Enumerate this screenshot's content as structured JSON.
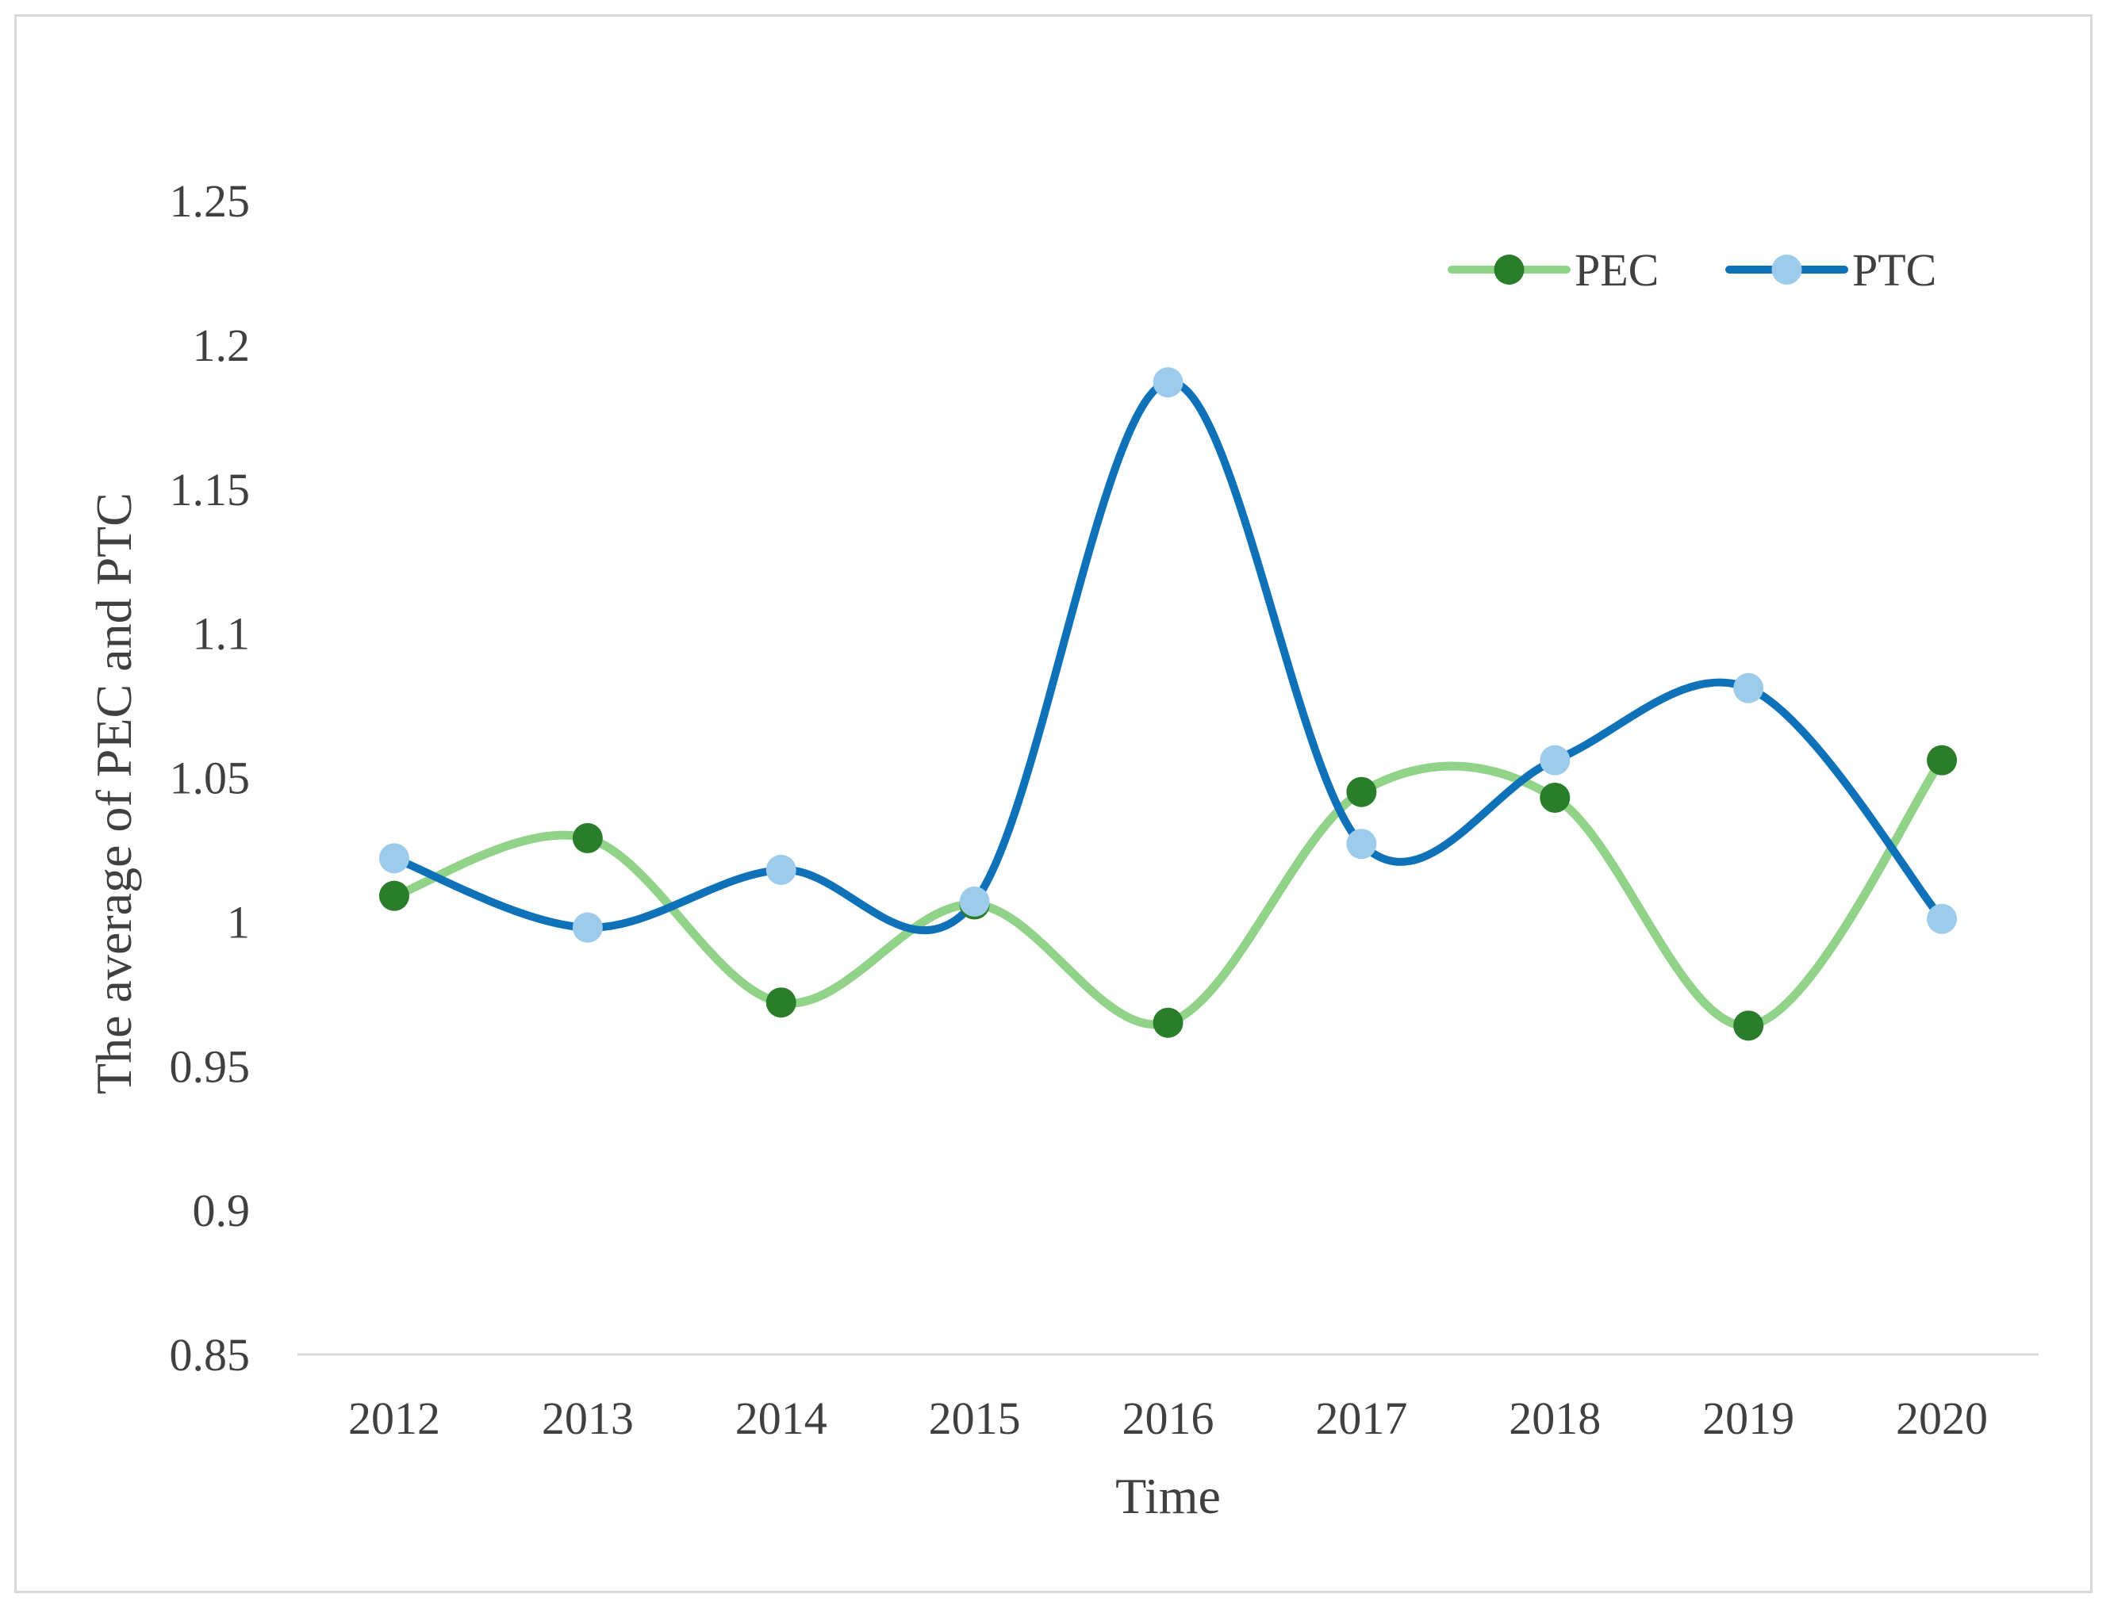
{
  "chart_data": {
    "type": "line",
    "title": "",
    "xlabel": "Time",
    "ylabel": "The average of PEC and PTC",
    "categories": [
      "2012",
      "2013",
      "2014",
      "2015",
      "2016",
      "2017",
      "2018",
      "2019",
      "2020"
    ],
    "y_ticks": [
      "0.85",
      "0.9",
      "0.95",
      "1",
      "1.05",
      "1.1",
      "1.15",
      "1.2",
      "1.25"
    ],
    "ylim": [
      0.85,
      1.25
    ],
    "grid": false,
    "smoothed": true,
    "legend_position": "top-right",
    "series": [
      {
        "name": "PEC",
        "line_color": "#92d38a",
        "marker_color": "#2a7d2a",
        "values": [
          1.009,
          1.029,
          0.972,
          1.006,
          0.965,
          1.045,
          1.043,
          0.964,
          1.056
        ]
      },
      {
        "name": "PTC",
        "line_color": "#0f72b8",
        "marker_color": "#9dcbec",
        "values": [
          1.022,
          0.998,
          1.018,
          1.007,
          1.187,
          1.027,
          1.056,
          1.081,
          1.001
        ]
      }
    ]
  }
}
